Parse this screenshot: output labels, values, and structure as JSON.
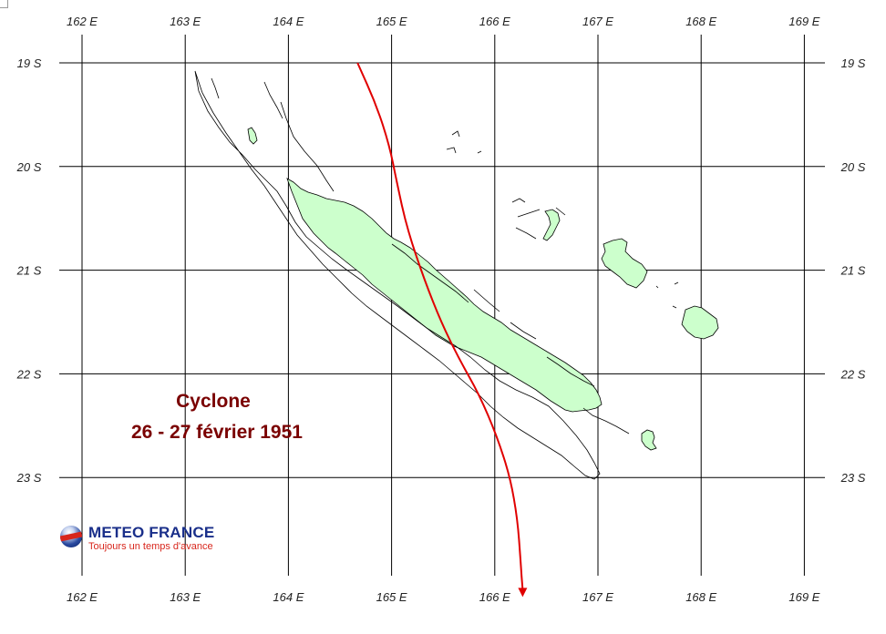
{
  "map": {
    "lon_labels": [
      "162 E",
      "163 E",
      "164 E",
      "165 E",
      "166 E",
      "167 E",
      "168 E",
      "169 E"
    ],
    "lat_labels": [
      "19 S",
      "20 S",
      "21 S",
      "22 S",
      "23 S"
    ],
    "title_line1": "Cyclone",
    "title_line2": "26 - 27 février 1951",
    "colors": {
      "land_fill": "#ccffcc",
      "coast_line": "#000000",
      "track": "#e00000",
      "grid": "#000000",
      "title": "#7a0000"
    },
    "track_points": [
      {
        "lon": 164.67,
        "lat": -19.0
      },
      {
        "lon": 164.85,
        "lat": -19.4
      },
      {
        "lon": 164.98,
        "lat": -19.8
      },
      {
        "lon": 165.05,
        "lat": -20.15
      },
      {
        "lon": 165.15,
        "lat": -20.6
      },
      {
        "lon": 165.32,
        "lat": -21.1
      },
      {
        "lon": 165.48,
        "lat": -21.5
      },
      {
        "lon": 165.65,
        "lat": -21.85
      },
      {
        "lon": 165.85,
        "lat": -22.2
      },
      {
        "lon": 166.02,
        "lat": -22.6
      },
      {
        "lon": 166.15,
        "lat": -23.0
      },
      {
        "lon": 166.22,
        "lat": -23.4
      },
      {
        "lon": 166.25,
        "lat": -23.8
      },
      {
        "lon": 166.27,
        "lat": -24.1
      }
    ]
  },
  "logo": {
    "name": "METEO FRANCE",
    "slogan": "Toujours un temps d'avance",
    "icon": "meteo-france-globe-icon"
  }
}
